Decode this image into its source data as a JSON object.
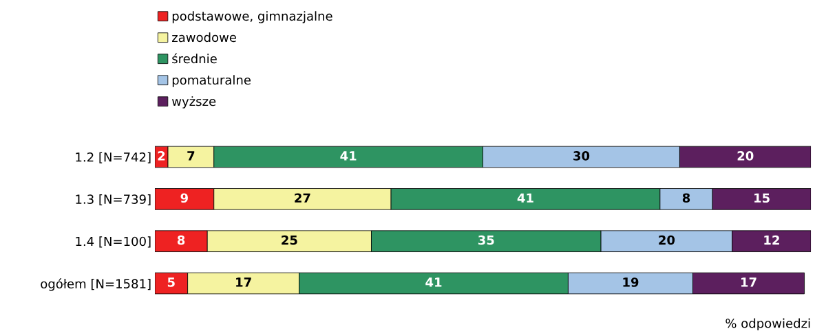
{
  "chart_data": {
    "type": "bar",
    "orientation": "horizontal",
    "stacked": true,
    "data_labels": true,
    "legend": "top left",
    "grid": false,
    "tick_labels": "y",
    "xlabel": "% odpowiedzi",
    "categories": [
      "1.2 [N=742]",
      "1.3 [N=739]",
      "1.4 [N=100]",
      "ogółem [N=1581]"
    ],
    "series": [
      {
        "name": "podstawowe, gimnazjalne",
        "color": "#ee2222",
        "values": [
          2,
          9,
          8,
          5
        ]
      },
      {
        "name": "zawodowe",
        "color": "#f5f3a0",
        "values": [
          7,
          27,
          25,
          17
        ]
      },
      {
        "name": "średnie",
        "color": "#2e9462",
        "values": [
          41,
          41,
          35,
          41
        ]
      },
      {
        "name": "pomaturalne",
        "color": "#a4c4e6",
        "values": [
          30,
          8,
          20,
          19
        ]
      },
      {
        "name": "wyższe",
        "color": "#5c1f5e",
        "values": [
          20,
          15,
          12,
          17
        ]
      }
    ]
  }
}
